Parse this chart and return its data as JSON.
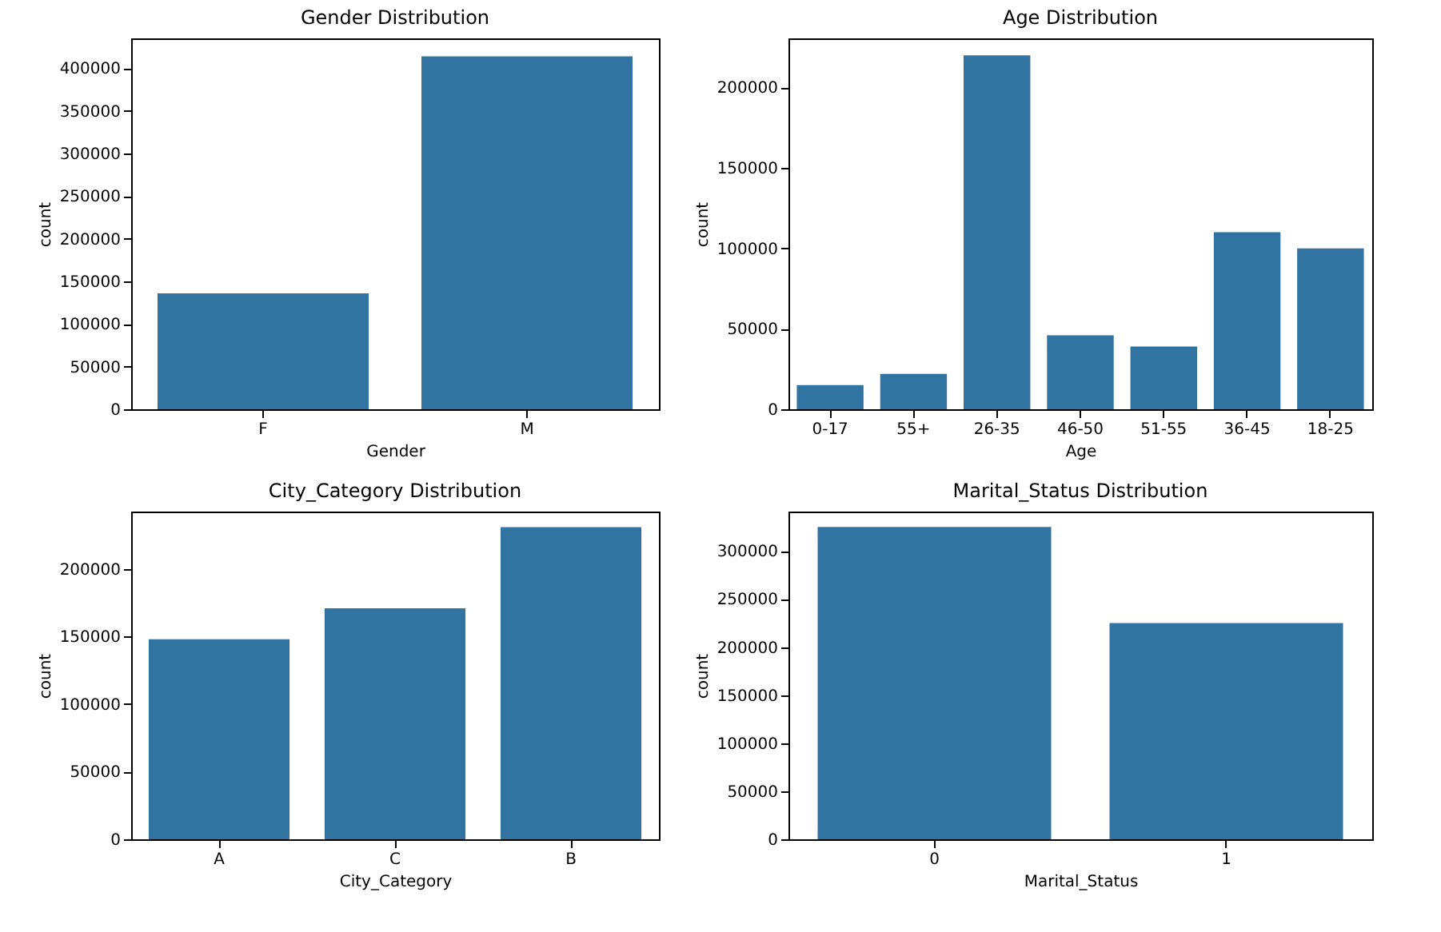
{
  "chart_data": [
    {
      "type": "bar",
      "title": "Gender Distribution",
      "xlabel": "Gender",
      "ylabel": "count",
      "categories": [
        "F",
        "M"
      ],
      "values": [
        136000,
        414000
      ],
      "color": "#3274a1",
      "ylim": [
        0,
        435000
      ],
      "yticks": [
        0,
        50000,
        100000,
        150000,
        200000,
        250000,
        300000,
        350000,
        400000
      ]
    },
    {
      "type": "bar",
      "title": "Age Distribution",
      "xlabel": "Age",
      "ylabel": "count",
      "categories": [
        "0-17",
        "55+",
        "26-35",
        "46-50",
        "51-55",
        "36-45",
        "18-25"
      ],
      "values": [
        15000,
        22000,
        220000,
        46000,
        39000,
        110000,
        100000
      ],
      "color": "#3274a1",
      "ylim": [
        0,
        230500
      ],
      "yticks": [
        0,
        50000,
        100000,
        150000,
        200000
      ]
    },
    {
      "type": "bar",
      "title": "City_Category Distribution",
      "xlabel": "City_Category",
      "ylabel": "count",
      "categories": [
        "A",
        "C",
        "B"
      ],
      "values": [
        148000,
        171000,
        231000
      ],
      "color": "#3274a1",
      "ylim": [
        0,
        242500
      ],
      "yticks": [
        0,
        50000,
        100000,
        150000,
        200000
      ]
    },
    {
      "type": "bar",
      "title": "Marital_Status Distribution",
      "xlabel": "Marital_Status",
      "ylabel": "count",
      "categories": [
        "0",
        "1"
      ],
      "values": [
        325000,
        225000
      ],
      "color": "#3274a1",
      "ylim": [
        0,
        341000
      ],
      "yticks": [
        0,
        50000,
        100000,
        150000,
        200000,
        250000,
        300000
      ]
    }
  ]
}
